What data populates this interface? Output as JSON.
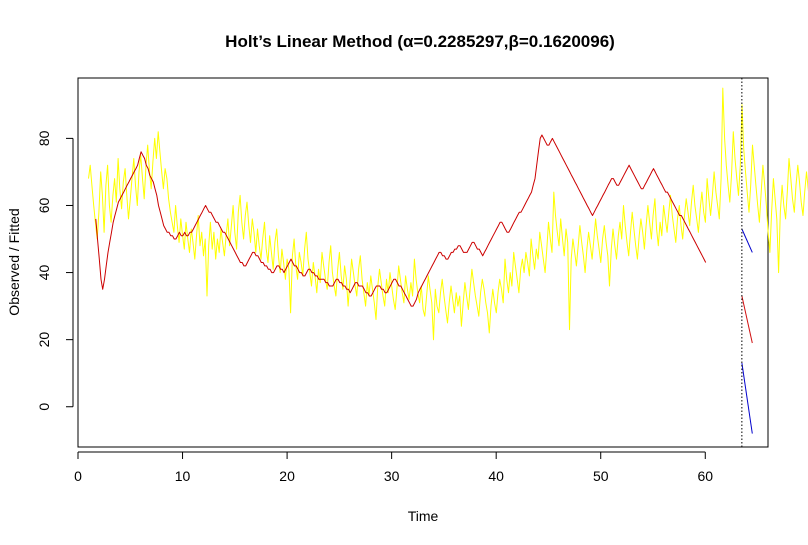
{
  "chart_data": {
    "type": "line",
    "title": "Holt’s Linear Method (α=0.2285297,β=0.1620096)",
    "xlabel": "Time",
    "ylabel": "Observed / Fitted",
    "xlim": [
      0,
      66
    ],
    "ylim": [
      -12,
      98
    ],
    "xticks": [
      0,
      10,
      20,
      30,
      40,
      50,
      60
    ],
    "yticks": [
      0,
      20,
      40,
      60,
      80
    ],
    "grid": false,
    "forecast_origin": 63.5,
    "colors": {
      "observed": "#FFFF00",
      "fitted": "#CC0000",
      "forecast": "#D01010",
      "interval": "#0000CC",
      "origin": "#000000"
    },
    "series": [
      {
        "key": "observed",
        "x_start": 1,
        "x_step": 0.1667,
        "values": [
          68,
          72,
          66,
          60,
          55,
          50,
          58,
          70,
          63,
          52,
          66,
          72,
          60,
          55,
          63,
          68,
          61,
          74,
          65,
          59,
          67,
          71,
          63,
          56,
          62,
          68,
          74,
          66,
          60,
          70,
          75,
          68,
          62,
          72,
          78,
          70,
          65,
          73,
          80,
          74,
          82,
          76,
          70,
          65,
          71,
          68,
          62,
          58,
          55,
          52,
          60,
          54,
          49,
          56,
          51,
          47,
          55,
          50,
          46,
          53,
          49,
          44,
          51,
          57,
          48,
          52,
          45,
          50,
          33,
          48,
          55,
          47,
          52,
          44,
          50,
          46,
          53,
          49,
          45,
          51,
          56,
          48,
          54,
          60,
          52,
          47,
          58,
          63,
          55,
          50,
          57,
          61,
          54,
          49,
          56,
          52,
          46,
          53,
          48,
          44,
          50,
          55,
          47,
          43,
          51,
          46,
          41,
          49,
          53,
          45,
          40,
          47,
          43,
          38,
          44,
          41,
          28,
          45,
          50,
          42,
          38,
          46,
          43,
          39,
          47,
          52,
          44,
          40,
          36,
          43,
          39,
          34,
          41,
          37,
          46,
          42,
          38,
          35,
          43,
          48,
          40,
          36,
          33,
          41,
          46,
          39,
          35,
          42,
          38,
          30,
          37,
          44,
          40,
          36,
          33,
          41,
          45,
          38,
          34,
          30,
          37,
          33,
          39,
          35,
          31,
          26,
          36,
          41,
          37,
          33,
          30,
          38,
          34,
          40,
          36,
          32,
          29,
          35,
          42,
          38,
          34,
          31,
          39,
          35,
          32,
          37,
          33,
          44,
          38,
          34,
          31,
          36,
          29,
          27,
          33,
          39,
          35,
          31,
          20,
          35,
          30,
          28,
          34,
          38,
          33,
          29,
          25,
          31,
          36,
          32,
          28,
          34,
          30,
          33,
          24,
          31,
          37,
          33,
          29,
          35,
          41,
          37,
          33,
          30,
          27,
          34,
          38,
          35,
          31,
          28,
          22,
          30,
          35,
          31,
          28,
          34,
          38,
          35,
          31,
          44,
          38,
          34,
          40,
          36,
          46,
          42,
          38,
          34,
          41,
          44,
          40,
          46,
          43,
          39,
          50,
          45,
          41,
          47,
          44,
          52,
          48,
          44,
          40,
          47,
          55,
          50,
          46,
          64,
          57,
          52,
          48,
          56,
          50,
          45,
          53,
          49,
          23,
          44,
          50,
          46,
          42,
          48,
          54,
          49,
          45,
          40,
          47,
          52,
          48,
          44,
          50,
          56,
          51,
          47,
          43,
          50,
          54,
          49,
          45,
          36,
          47,
          53,
          48,
          44,
          51,
          55,
          50,
          60,
          54,
          49,
          45,
          52,
          58,
          53,
          48,
          44,
          51,
          56,
          52,
          47,
          54,
          60,
          55,
          50,
          57,
          62,
          53,
          48,
          55,
          51,
          60,
          56,
          52,
          58,
          63,
          57,
          53,
          49,
          56,
          60,
          54,
          50,
          57,
          62,
          58,
          54,
          61,
          66,
          60,
          56,
          52,
          59,
          64,
          58,
          55,
          68,
          62,
          57,
          63,
          70,
          64,
          60,
          56,
          68,
          95,
          80,
          72,
          66,
          61,
          69,
          82,
          74,
          68,
          63,
          72,
          90,
          77,
          70,
          64,
          58,
          66,
          78,
          72,
          66,
          60,
          55,
          64,
          72,
          66,
          60,
          52,
          46,
          58,
          68,
          62,
          56,
          40,
          58,
          66,
          60,
          56,
          64,
          74,
          68,
          62,
          58,
          66,
          72,
          67,
          61,
          57,
          64,
          70,
          65,
          60,
          56,
          64,
          72,
          68,
          62,
          58,
          66,
          76,
          70,
          65,
          60,
          68,
          92,
          76,
          70,
          64,
          58,
          66,
          70,
          64,
          60,
          55,
          62,
          68,
          63,
          58,
          54,
          61,
          66,
          62,
          58,
          53,
          48,
          56,
          62,
          58,
          53,
          60,
          55,
          50,
          56,
          48,
          44,
          51,
          47,
          43,
          40,
          38,
          36,
          35
        ]
      },
      {
        "key": "fitted",
        "x_start": 1.7,
        "x_step": 0.1667,
        "values": [
          56,
          50,
          44,
          38,
          35,
          38,
          42,
          46,
          49,
          52,
          55,
          57,
          59,
          61,
          62,
          63,
          64,
          65,
          66,
          67,
          68,
          69,
          70,
          71,
          72,
          74,
          76,
          75,
          74,
          72,
          71,
          69,
          68,
          67,
          65,
          63,
          60,
          58,
          56,
          54,
          53,
          52,
          52,
          51,
          51,
          50,
          50,
          51,
          52,
          51,
          51,
          52,
          51,
          51,
          52,
          52,
          53,
          54,
          55,
          56,
          57,
          58,
          59,
          60,
          59,
          58,
          58,
          57,
          56,
          55,
          55,
          54,
          53,
          52,
          52,
          51,
          50,
          49,
          48,
          47,
          46,
          45,
          44,
          43,
          43,
          42,
          42,
          43,
          44,
          45,
          46,
          46,
          45,
          45,
          44,
          43,
          43,
          42,
          42,
          41,
          41,
          40,
          40,
          41,
          42,
          42,
          41,
          41,
          40,
          41,
          42,
          43,
          44,
          43,
          42,
          42,
          41,
          40,
          40,
          39,
          39,
          40,
          41,
          41,
          40,
          40,
          39,
          39,
          38,
          38,
          38,
          38,
          37,
          37,
          36,
          36,
          36,
          37,
          38,
          38,
          37,
          37,
          36,
          36,
          35,
          35,
          34,
          35,
          36,
          37,
          37,
          36,
          36,
          36,
          35,
          34,
          34,
          33,
          33,
          34,
          35,
          36,
          36,
          36,
          35,
          35,
          34,
          34,
          35,
          36,
          37,
          38,
          38,
          37,
          36,
          36,
          35,
          34,
          33,
          32,
          31,
          30,
          30,
          31,
          32,
          34,
          35,
          36,
          37,
          38,
          39,
          40,
          41,
          42,
          43,
          44,
          45,
          46,
          46,
          45,
          45,
          44,
          44,
          45,
          46,
          46,
          47,
          47,
          48,
          48,
          47,
          46,
          46,
          46,
          47,
          48,
          49,
          49,
          48,
          47,
          47,
          46,
          45,
          46,
          47,
          48,
          49,
          50,
          51,
          52,
          53,
          54,
          55,
          55,
          54,
          53,
          52,
          52,
          53,
          54,
          55,
          56,
          57,
          58,
          58,
          59,
          60,
          61,
          62,
          63,
          64,
          66,
          68,
          72,
          76,
          80,
          81,
          80,
          79,
          78,
          78,
          79,
          80,
          79,
          78,
          77,
          76,
          75,
          74,
          73,
          72,
          71,
          70,
          69,
          68,
          67,
          66,
          65,
          64,
          63,
          62,
          61,
          60,
          59,
          58,
          57,
          58,
          59,
          60,
          61,
          62,
          63,
          64,
          65,
          66,
          67,
          68,
          68,
          67,
          66,
          66,
          67,
          68,
          69,
          70,
          71,
          72,
          71,
          70,
          69,
          68,
          67,
          66,
          65,
          65,
          66,
          67,
          68,
          69,
          70,
          71,
          70,
          69,
          68,
          67,
          66,
          65,
          64,
          64,
          63,
          62,
          61,
          60,
          59,
          58,
          57,
          57,
          56,
          55,
          54,
          53,
          52,
          51,
          50,
          49,
          48,
          47,
          46,
          45,
          44,
          43
        ]
      },
      {
        "key": "forecast",
        "x": [
          63.5,
          64.5
        ],
        "values": [
          33,
          19
        ]
      },
      {
        "key": "interval_upper",
        "x": [
          63.5,
          64.5
        ],
        "values": [
          53,
          46
        ]
      },
      {
        "key": "interval_lower",
        "x": [
          63.5,
          64.5
        ],
        "values": [
          13,
          -8
        ]
      }
    ]
  }
}
